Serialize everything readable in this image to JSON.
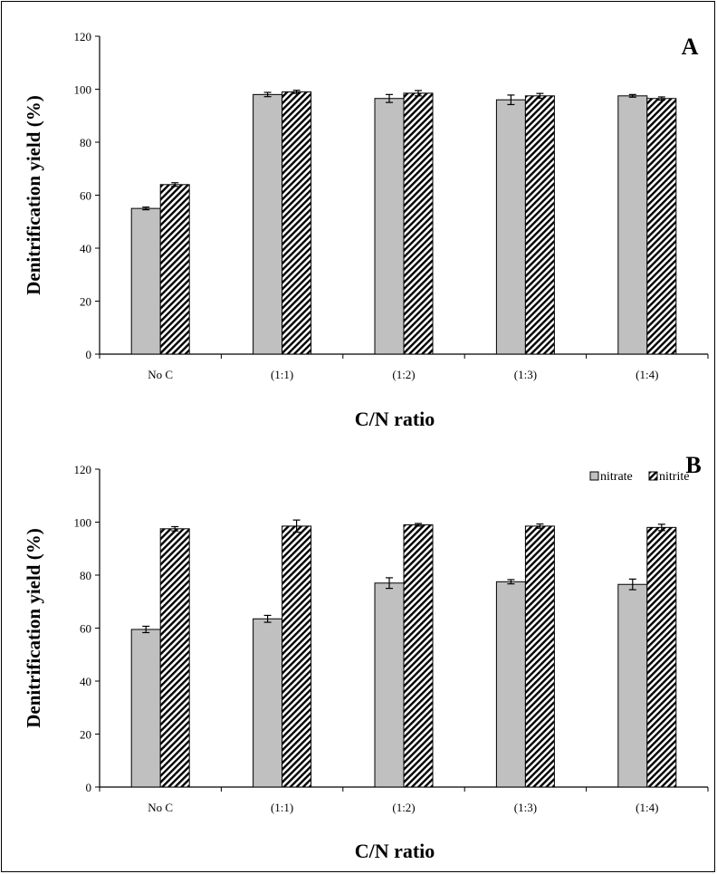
{
  "chart_data": [
    {
      "type": "bar",
      "panel_label": "A",
      "categories": [
        "No C",
        "(1:1)",
        "(1:2)",
        "(1:3)",
        "(1:4)"
      ],
      "series": [
        {
          "name": "nitrate",
          "values": [
            55,
            98,
            96.5,
            96,
            97.5
          ],
          "errors": [
            0.5,
            0.8,
            1.5,
            1.8,
            0.5
          ]
        },
        {
          "name": "nitrite",
          "values": [
            64,
            99,
            98.5,
            97.5,
            96.5
          ],
          "errors": [
            0.7,
            0.6,
            1.0,
            0.9,
            0.6
          ]
        }
      ],
      "xlabel": "C/N ratio",
      "ylabel": "Denitrification yield (%)",
      "ylim": [
        0,
        120
      ],
      "yticks": [
        "0",
        "20",
        "40",
        "60",
        "80",
        "100",
        "120"
      ],
      "legend": false
    },
    {
      "type": "bar",
      "panel_label": "B",
      "categories": [
        "No C",
        "(1:1)",
        "(1:2)",
        "(1:3)",
        "(1:4)"
      ],
      "series": [
        {
          "name": "nitrate",
          "values": [
            59.5,
            63.5,
            77,
            77.5,
            76.5
          ],
          "errors": [
            1.2,
            1.3,
            2.0,
            0.8,
            2.0
          ]
        },
        {
          "name": "nitrite",
          "values": [
            97.5,
            98.5,
            99,
            98.5,
            98
          ],
          "errors": [
            0.8,
            2.3,
            0.5,
            0.8,
            1.2
          ]
        }
      ],
      "xlabel": "C/N ratio",
      "ylabel": "Denitrification yield (%)",
      "ylim": [
        0,
        120
      ],
      "yticks": [
        "0",
        "20",
        "40",
        "60",
        "80",
        "100",
        "120"
      ],
      "legend": true,
      "legend_position": "top-right"
    }
  ],
  "colors": {
    "nitrate_fill": "#c0c0c0",
    "nitrite_hatch": "#000000",
    "axis": "#000000"
  }
}
